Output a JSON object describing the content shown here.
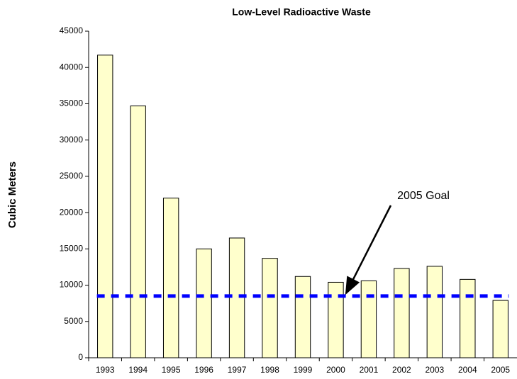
{
  "chart_data": {
    "type": "bar",
    "title": "Low-Level Radioactive Waste",
    "y_label": "Cubic Meters",
    "categories": [
      "1993",
      "1994",
      "1995",
      "1996",
      "1997",
      "1998",
      "1999",
      "2000",
      "2001",
      "2002",
      "2003",
      "2004",
      "2005"
    ],
    "values": [
      41700,
      34700,
      22000,
      15000,
      16500,
      13700,
      11200,
      10400,
      10600,
      12300,
      12600,
      10800,
      7900
    ],
    "color": "#ffffcc",
    "goal": 8500,
    "goal_color": "#0000ff",
    "annotation": "2005 Goal",
    "ylim": [
      0,
      45000
    ],
    "yticks": [
      0,
      5000,
      10000,
      15000,
      20000,
      25000,
      30000,
      35000,
      40000,
      45000
    ],
    "grid": false
  }
}
